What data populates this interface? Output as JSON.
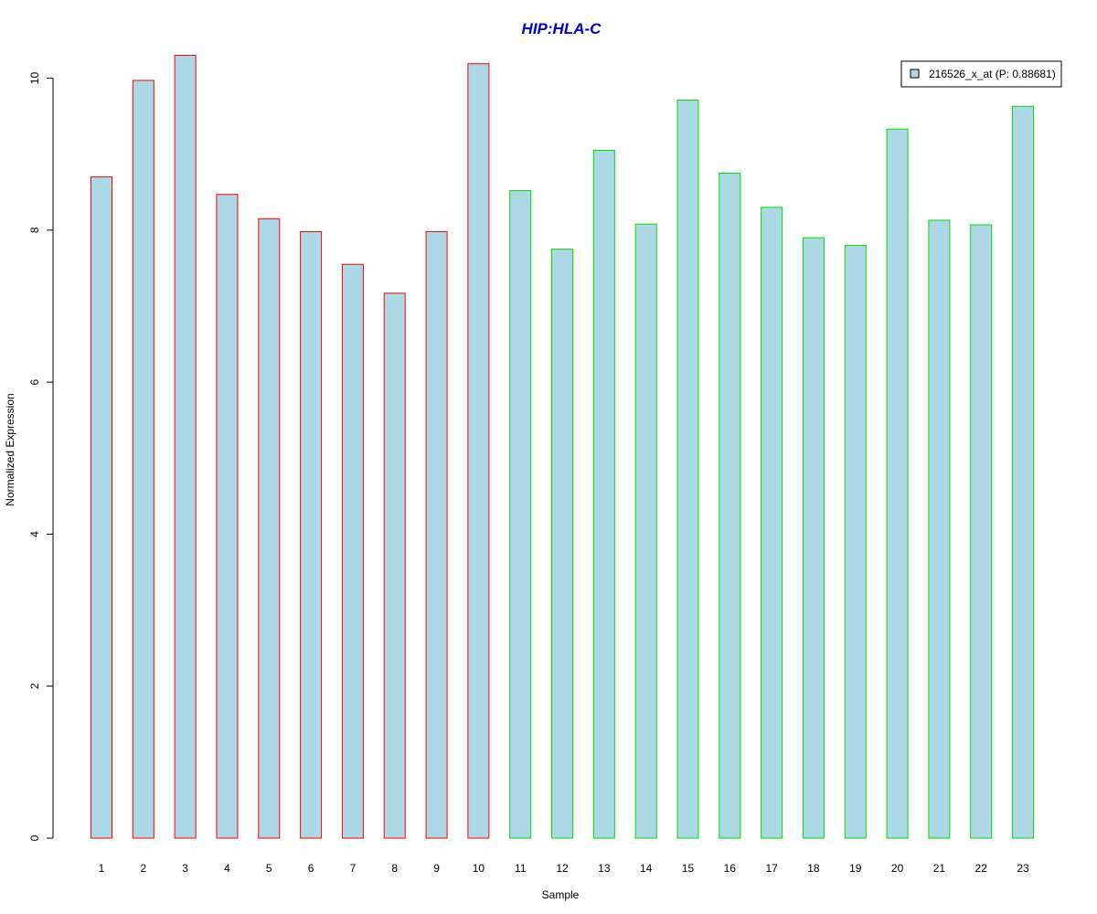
{
  "chart_data": {
    "type": "bar",
    "title": "HIP:HLA-C",
    "xlabel": "Sample",
    "ylabel": "Normalized Expression",
    "categories": [
      "1",
      "2",
      "3",
      "4",
      "5",
      "6",
      "7",
      "8",
      "9",
      "10",
      "11",
      "12",
      "13",
      "14",
      "15",
      "16",
      "17",
      "18",
      "19",
      "20",
      "21",
      "22",
      "23"
    ],
    "series": [
      {
        "name": "216526_x_at (P: 0.88681)",
        "values": [
          8.7,
          9.97,
          10.3,
          8.47,
          8.15,
          7.98,
          7.55,
          7.17,
          7.98,
          10.19,
          8.52,
          7.75,
          9.05,
          8.08,
          9.71,
          8.75,
          8.3,
          7.9,
          7.8,
          9.33,
          8.13,
          8.07,
          9.63
        ]
      }
    ],
    "ylim": [
      0,
      10.4
    ],
    "yticks": [
      0,
      2,
      4,
      6,
      8,
      10
    ],
    "grid": false,
    "legend_position": "top-right",
    "colors": {
      "title": "#0000cc",
      "bar_fill": "#add8e6",
      "group1_border": "#ff0000",
      "group2_border": "#00dd00",
      "axis": "#000000"
    },
    "border_groups": [
      "group1",
      "group1",
      "group1",
      "group1",
      "group1",
      "group1",
      "group1",
      "group1",
      "group1",
      "group1",
      "group2",
      "group2",
      "group2",
      "group2",
      "group2",
      "group2",
      "group2",
      "group2",
      "group2",
      "group2",
      "group2",
      "group2",
      "group2"
    ]
  }
}
